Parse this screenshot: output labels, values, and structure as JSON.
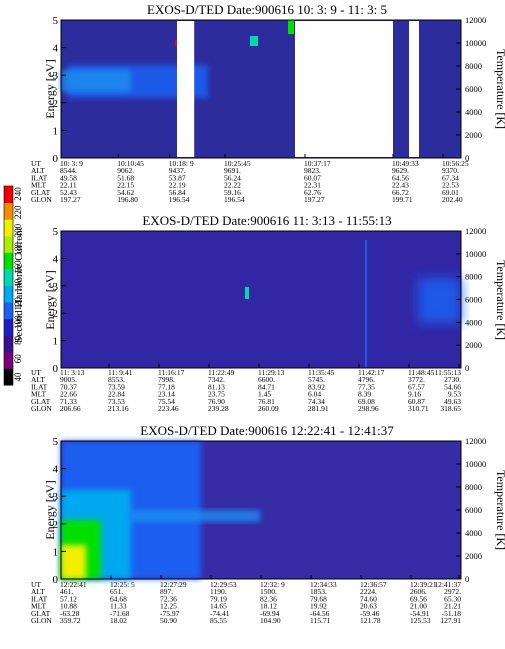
{
  "colorbar": {
    "label": "Second Harmonic Current",
    "ticks": [
      "40",
      "60",
      "80",
      "100",
      "120",
      "140",
      "160",
      "180",
      "200",
      "220",
      "240"
    ],
    "colors": [
      "#000000",
      "#7a007a",
      "#3c1090",
      "#2020c0",
      "#1e5ef0",
      "#00a8f0",
      "#00d8b0",
      "#00e000",
      "#a8f000",
      "#f0f000",
      "#f09000",
      "#f00000"
    ]
  },
  "chart_data": [
    {
      "type": "heatmap",
      "title": "EXOS-D/TED   Date:900616   10: 3: 9 - 11: 3: 5",
      "ylabel": "Energy [eV]",
      "y2label": "Temperature [K]",
      "ylim": [
        0,
        5
      ],
      "y2lim": [
        0,
        12000
      ],
      "yticks": [
        "0",
        "1",
        "2",
        "3",
        "4",
        "5"
      ],
      "y2ticks": [
        "0",
        "2000",
        "4000",
        "6000",
        "8000",
        "10000",
        "12000"
      ],
      "gaps": [
        [
          0.29,
          0.333
        ],
        [
          0.585,
          0.83
        ],
        [
          0.87,
          0.895
        ]
      ],
      "orbit_labels": [
        "UT",
        "ALT",
        "ILAT",
        "MLT",
        "GLAT",
        "GLON"
      ],
      "orbit": [
        {
          "pos": 0.0,
          "vals": [
            "10: 3: 9",
            "8544.",
            "49.58",
            "22.11",
            "52.43",
            "197.27"
          ]
        },
        {
          "pos": 0.143,
          "vals": [
            "10:10:45",
            "9062.",
            "51.68",
            "22.15",
            "54.62",
            "196.80"
          ]
        },
        {
          "pos": 0.272,
          "vals": [
            "10:18: 9",
            "9437.",
            "53.87",
            "22.19",
            "56.84",
            "196.54"
          ]
        },
        {
          "pos": 0.41,
          "vals": [
            "10:25:45",
            "9691.",
            "56.24",
            "22.22",
            "59.16",
            "196.54"
          ]
        },
        {
          "pos": 0.61,
          "vals": [
            "10:37:17",
            "9823.",
            "60.07",
            "22.31",
            "62.76",
            "197.27"
          ]
        },
        {
          "pos": 0.83,
          "vals": [
            "10:49:33",
            "9629.",
            "64.56",
            "22.43",
            "66.72",
            "199.71"
          ]
        },
        {
          "pos": 0.955,
          "vals": [
            "10:56:25",
            "9370.",
            "67.34",
            "22.53",
            "69.01",
            "202.40"
          ]
        }
      ]
    },
    {
      "type": "heatmap",
      "title": "EXOS-D/TED   Date:900616   11: 3:13 - 11:55:13",
      "ylabel": "Energy [eV]",
      "y2label": "Temperature [K]",
      "ylim": [
        0,
        5
      ],
      "y2lim": [
        0,
        12000
      ],
      "yticks": [
        "0",
        "1",
        "2",
        "3",
        "4",
        "5"
      ],
      "y2ticks": [
        "0",
        "2000",
        "4000",
        "6000",
        "8000",
        "10000",
        "12000"
      ],
      "gaps": [],
      "orbit_labels": [
        "UT",
        "ALT",
        "ILAT",
        "MLT",
        "GLAT",
        "GLON"
      ],
      "orbit": [
        {
          "pos": 0.0,
          "vals": [
            "11: 3:13",
            "9005.",
            "70.37",
            "22.66",
            "71.33",
            "206.66"
          ]
        },
        {
          "pos": 0.12,
          "vals": [
            "11: 9:41",
            "8553.",
            "73.59",
            "22.84",
            "73.53",
            "213.16"
          ]
        },
        {
          "pos": 0.245,
          "vals": [
            "11:16:17",
            "7998.",
            "77.18",
            "23.14",
            "75.54",
            "223.46"
          ]
        },
        {
          "pos": 0.37,
          "vals": [
            "11:22:49",
            "7342.",
            "81.13",
            "23.75",
            "76.90",
            "239.28"
          ]
        },
        {
          "pos": 0.495,
          "vals": [
            "11:29:13",
            "6600.",
            "84.71",
            "1.45",
            "76.81",
            "260.09"
          ]
        },
        {
          "pos": 0.62,
          "vals": [
            "11:35:45",
            "5745.",
            "83.92",
            "6.04",
            "74.34",
            "281.91"
          ]
        },
        {
          "pos": 0.745,
          "vals": [
            "11:42:17",
            "4796.",
            "77.35",
            "8.39",
            "69.08",
            "298.96"
          ]
        },
        {
          "pos": 0.87,
          "vals": [
            "11:48:45",
            "3772.",
            "67.57",
            "9.16",
            "60.87",
            "310.71"
          ]
        },
        {
          "pos": 0.995,
          "vals": [
            "11:55:13",
            "2730.",
            "54.66",
            "9.53",
            "49.63",
            "318.65"
          ]
        }
      ]
    },
    {
      "type": "heatmap",
      "title": "EXOS-D/TED   Date:900616   12:22:41 - 12:41:37",
      "ylabel": "Energy [eV]",
      "y2label": "Temperature [K]",
      "ylim": [
        0,
        5
      ],
      "y2lim": [
        0,
        12000
      ],
      "yticks": [
        "0",
        "1",
        "2",
        "3",
        "4",
        "5"
      ],
      "y2ticks": [
        "0",
        "2000",
        "4000",
        "6000",
        "8000",
        "10000",
        "12000"
      ],
      "gaps": [],
      "orbit_labels": [
        "UT",
        "ALT",
        "ILAT",
        "MLT",
        "GLAT",
        "GLON"
      ],
      "orbit": [
        {
          "pos": 0.0,
          "vals": [
            "12:22:41",
            "461.",
            "57.12",
            "10.88",
            "-63.28",
            "359.72"
          ]
        },
        {
          "pos": 0.125,
          "vals": [
            "12:25: 5",
            "651.",
            "64.68",
            "11.33",
            "-71.68",
            "18.02"
          ]
        },
        {
          "pos": 0.25,
          "vals": [
            "12:27:29",
            "897.",
            "72.36",
            "12.25",
            "-75.97",
            "50.90"
          ]
        },
        {
          "pos": 0.375,
          "vals": [
            "12:29:53",
            "1190.",
            "79.19",
            "14.65",
            "-74.41",
            "85.55"
          ]
        },
        {
          "pos": 0.5,
          "vals": [
            "12:32: 9",
            "1500.",
            "82.36",
            "18.12",
            "-69.94",
            "104.90"
          ]
        },
        {
          "pos": 0.625,
          "vals": [
            "12:34:33",
            "1853.",
            "79.68",
            "19.92",
            "-64.56",
            "115.71"
          ]
        },
        {
          "pos": 0.75,
          "vals": [
            "12:36:57",
            "2224.",
            "74.60",
            "20.63",
            "-59.46",
            "121.78"
          ]
        },
        {
          "pos": 0.875,
          "vals": [
            "12:39:21",
            "2606.",
            "69.56",
            "21.00",
            "-54.91",
            "125.53"
          ]
        },
        {
          "pos": 0.995,
          "vals": [
            "12:41:37",
            "2972.",
            "65.30",
            "21.21",
            "-51.18",
            "127.91"
          ]
        }
      ]
    }
  ]
}
